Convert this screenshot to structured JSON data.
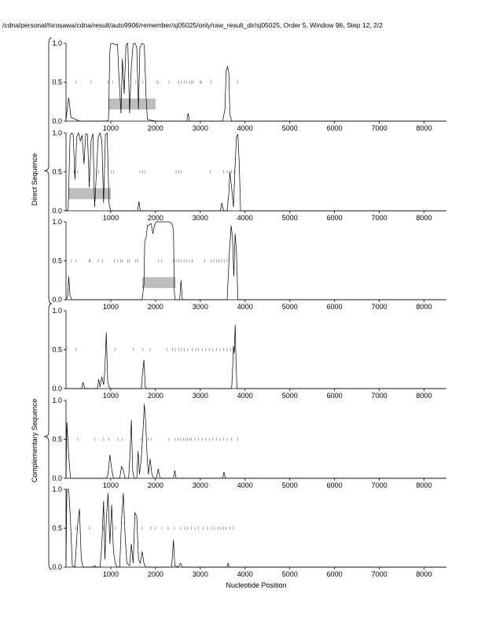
{
  "header": {
    "title": "/cdna/personal/hirosawa/cdna/result/auto9906/remember/sj05025/only/raw_result_dir/sj05025, Order 5, Window 96, Step 12, 2/2"
  },
  "side_labels": {
    "direct": "Direct Sequence",
    "complementary": "Complementary Sequence"
  },
  "chart_data": {
    "type": "line",
    "xlabel": "Nucleotide Position",
    "xlim": [
      0,
      8500
    ],
    "ylim": [
      0,
      1
    ],
    "x_ticks": [
      1000,
      2000,
      3000,
      4000,
      5000,
      6000,
      7000,
      8000
    ],
    "x_tick_labels": [
      "1000",
      "2000",
      "3000",
      "4000",
      "5000",
      "6000",
      "7000",
      "8000"
    ],
    "y_ticks": [
      0,
      0.5,
      1
    ],
    "y_tick_labels": [
      "0.0",
      "0.5",
      "1.0"
    ],
    "grid": false,
    "panels": [
      {
        "group": "direct",
        "region": [
          950,
          2000
        ],
        "marks": [
          220,
          560,
          940,
          1040,
          1300,
          1560,
          1720,
          2020,
          2060,
          2300,
          2520,
          2580,
          2640,
          2700,
          2760,
          2800,
          2840,
          3000,
          3020,
          3240,
          3840
        ],
        "points": [
          [
            0,
            0.02
          ],
          [
            60,
            0.3
          ],
          [
            110,
            0.05
          ],
          [
            300,
            0.0
          ],
          [
            900,
            0.0
          ],
          [
            950,
            0.02
          ],
          [
            980,
            0.9
          ],
          [
            1000,
            0.99
          ],
          [
            1050,
            1.0
          ],
          [
            1100,
            0.98
          ],
          [
            1150,
            0.99
          ],
          [
            1180,
            0.6
          ],
          [
            1230,
            0.1
          ],
          [
            1260,
            0.8
          ],
          [
            1300,
            0.35
          ],
          [
            1340,
            0.98
          ],
          [
            1380,
            1.0
          ],
          [
            1420,
            0.1
          ],
          [
            1460,
            0.7
          ],
          [
            1500,
            0.99
          ],
          [
            1540,
            1.0
          ],
          [
            1580,
            0.95
          ],
          [
            1620,
            0.15
          ],
          [
            1650,
            0.95
          ],
          [
            1700,
            1.0
          ],
          [
            1750,
            0.98
          ],
          [
            1790,
            0.3
          ],
          [
            1820,
            0.02
          ],
          [
            2000,
            0.0
          ],
          [
            2700,
            0.0
          ],
          [
            2730,
            0.1
          ],
          [
            2760,
            0.0
          ],
          [
            3500,
            0.0
          ],
          [
            3550,
            0.15
          ],
          [
            3580,
            0.65
          ],
          [
            3610,
            0.7
          ],
          [
            3640,
            0.6
          ],
          [
            3660,
            0.1
          ],
          [
            3700,
            0.0
          ],
          [
            8500,
            0.0
          ]
        ]
      },
      {
        "group": "direct",
        "region": [
          50,
          1000
        ],
        "marks": [
          180,
          260,
          680,
          730,
          1010,
          1060,
          1650,
          1710,
          1760,
          2460,
          2520,
          2580,
          3220,
          3520,
          3600,
          3660,
          3700,
          3760
        ],
        "points": [
          [
            0,
            0.0
          ],
          [
            50,
            0.02
          ],
          [
            90,
            0.95
          ],
          [
            120,
            1.0
          ],
          [
            160,
            0.98
          ],
          [
            200,
            0.4
          ],
          [
            240,
            0.95
          ],
          [
            280,
            1.0
          ],
          [
            320,
            0.9
          ],
          [
            360,
            0.97
          ],
          [
            400,
            0.6
          ],
          [
            440,
            0.99
          ],
          [
            480,
            0.98
          ],
          [
            520,
            0.3
          ],
          [
            560,
            0.9
          ],
          [
            600,
            0.99
          ],
          [
            640,
            0.05
          ],
          [
            680,
            0.5
          ],
          [
            720,
            0.95
          ],
          [
            760,
            1.0
          ],
          [
            800,
            0.9
          ],
          [
            840,
            0.1
          ],
          [
            880,
            0.98
          ],
          [
            920,
            1.0
          ],
          [
            960,
            0.1
          ],
          [
            1000,
            0.0
          ],
          [
            1600,
            0.0
          ],
          [
            1630,
            0.12
          ],
          [
            1660,
            0.0
          ],
          [
            3450,
            0.0
          ],
          [
            3480,
            0.1
          ],
          [
            3520,
            0.0
          ],
          [
            3600,
            0.0
          ],
          [
            3640,
            0.25
          ],
          [
            3660,
            0.5
          ],
          [
            3700,
            0.3
          ],
          [
            3740,
            0.05
          ],
          [
            3780,
            0.6
          ],
          [
            3810,
            0.95
          ],
          [
            3840,
            0.98
          ],
          [
            3870,
            0.6
          ],
          [
            3900,
            0.0
          ],
          [
            8500,
            0.0
          ]
        ]
      },
      {
        "group": "direct",
        "region": [
          1700,
          2450
        ],
        "marks": [
          120,
          220,
          520,
          540,
          720,
          820,
          1080,
          1160,
          1220,
          1260,
          1380,
          1420,
          1560,
          1600,
          2060,
          2140,
          2400,
          2460,
          2520,
          2580,
          2640,
          2700,
          2760,
          2820,
          3100,
          3240,
          3300,
          3360,
          3420,
          3480,
          3540,
          3600
        ],
        "points": [
          [
            0,
            0.0
          ],
          [
            40,
            0.05
          ],
          [
            60,
            0.3
          ],
          [
            90,
            0.05
          ],
          [
            130,
            0.0
          ],
          [
            1700,
            0.0
          ],
          [
            1740,
            0.2
          ],
          [
            1760,
            0.75
          ],
          [
            1790,
            0.8
          ],
          [
            1820,
            0.95
          ],
          [
            1860,
            0.96
          ],
          [
            1900,
            0.98
          ],
          [
            1940,
            0.85
          ],
          [
            1980,
            0.96
          ],
          [
            2020,
            1.0
          ],
          [
            2100,
            1.0
          ],
          [
            2200,
            1.0
          ],
          [
            2300,
            1.0
          ],
          [
            2360,
            0.98
          ],
          [
            2400,
            0.9
          ],
          [
            2420,
            0.1
          ],
          [
            2440,
            0.0
          ],
          [
            2540,
            0.0
          ],
          [
            2570,
            0.25
          ],
          [
            2600,
            0.0
          ],
          [
            3600,
            0.0
          ],
          [
            3650,
            0.6
          ],
          [
            3690,
            0.95
          ],
          [
            3720,
            0.8
          ],
          [
            3750,
            0.3
          ],
          [
            3780,
            0.85
          ],
          [
            3810,
            0.6
          ],
          [
            3840,
            0.0
          ],
          [
            8500,
            0.0
          ]
        ]
      },
      {
        "group": "complementary",
        "region": null,
        "marks": [
          220,
          1100,
          1500,
          1720,
          1880,
          2260,
          2380,
          2440,
          2520,
          2580,
          2640,
          2720,
          2820,
          2900,
          2960,
          3040,
          3120,
          3200,
          3280,
          3360,
          3440,
          3520,
          3600,
          3680,
          3740
        ],
        "points": [
          [
            0,
            0.0
          ],
          [
            350,
            0.0
          ],
          [
            380,
            0.08
          ],
          [
            420,
            0.0
          ],
          [
            700,
            0.0
          ],
          [
            730,
            0.12
          ],
          [
            760,
            0.02
          ],
          [
            800,
            0.15
          ],
          [
            840,
            0.05
          ],
          [
            870,
            0.25
          ],
          [
            900,
            0.72
          ],
          [
            930,
            0.1
          ],
          [
            960,
            0.02
          ],
          [
            1000,
            0.0
          ],
          [
            1680,
            0.0
          ],
          [
            1710,
            0.2
          ],
          [
            1740,
            0.37
          ],
          [
            1770,
            0.02
          ],
          [
            1800,
            0.0
          ],
          [
            3700,
            0.0
          ],
          [
            3720,
            0.2
          ],
          [
            3740,
            0.55
          ],
          [
            3760,
            0.45
          ],
          [
            3780,
            0.82
          ],
          [
            3800,
            0.3
          ],
          [
            3820,
            0.0
          ],
          [
            8500,
            0.0
          ]
        ]
      },
      {
        "group": "complementary",
        "region": null,
        "marks": [
          260,
          640,
          840,
          960,
          1160,
          1260,
          1680,
          1840,
          1900,
          2300,
          2440,
          2500,
          2560,
          2620,
          2680,
          2720,
          2760,
          2800,
          2880,
          2960,
          3040,
          3120,
          3200,
          3280,
          3360,
          3440,
          3520,
          3600,
          3700,
          3840
        ],
        "points": [
          [
            0,
            0.0
          ],
          [
            20,
            0.72
          ],
          [
            60,
            0.3
          ],
          [
            100,
            0.0
          ],
          [
            900,
            0.0
          ],
          [
            940,
            0.05
          ],
          [
            980,
            0.3
          ],
          [
            1020,
            0.12
          ],
          [
            1060,
            0.0
          ],
          [
            1200,
            0.0
          ],
          [
            1240,
            0.15
          ],
          [
            1280,
            0.1
          ],
          [
            1320,
            0.0
          ],
          [
            1400,
            0.0
          ],
          [
            1430,
            0.3
          ],
          [
            1460,
            0.75
          ],
          [
            1490,
            0.1
          ],
          [
            1520,
            0.0
          ],
          [
            1580,
            0.0
          ],
          [
            1610,
            0.35
          ],
          [
            1640,
            0.05
          ],
          [
            1680,
            0.25
          ],
          [
            1720,
            0.6
          ],
          [
            1750,
            0.95
          ],
          [
            1780,
            0.7
          ],
          [
            1810,
            0.3
          ],
          [
            1840,
            0.05
          ],
          [
            1880,
            0.25
          ],
          [
            1920,
            0.05
          ],
          [
            1960,
            0.0
          ],
          [
            2020,
            0.0
          ],
          [
            2060,
            0.12
          ],
          [
            2100,
            0.0
          ],
          [
            2400,
            0.0
          ],
          [
            2430,
            0.1
          ],
          [
            2460,
            0.0
          ],
          [
            3500,
            0.0
          ],
          [
            3530,
            0.08
          ],
          [
            3560,
            0.0
          ],
          [
            8500,
            0.0
          ]
        ]
      },
      {
        "group": "complementary",
        "region": null,
        "marks": [
          220,
          520,
          840,
          1100,
          1700,
          1900,
          2000,
          2140,
          2280,
          2420,
          2560,
          2660,
          2720,
          2800,
          2880,
          2960,
          3060,
          3160,
          3260,
          3320,
          3400,
          3460,
          3520,
          3580,
          3660,
          3740
        ],
        "points": [
          [
            0,
            0.1
          ],
          [
            20,
            1.0
          ],
          [
            60,
            1.0
          ],
          [
            100,
            0.6
          ],
          [
            140,
            0.02
          ],
          [
            200,
            0.0
          ],
          [
            260,
            0.55
          ],
          [
            300,
            0.75
          ],
          [
            340,
            0.1
          ],
          [
            380,
            0.0
          ],
          [
            600,
            0.0
          ],
          [
            640,
            0.02
          ],
          [
            680,
            0.0
          ],
          [
            760,
            0.0
          ],
          [
            800,
            0.3
          ],
          [
            840,
            0.85
          ],
          [
            870,
            0.1
          ],
          [
            900,
            0.6
          ],
          [
            940,
            0.95
          ],
          [
            980,
            0.3
          ],
          [
            1020,
            0.8
          ],
          [
            1060,
            0.2
          ],
          [
            1100,
            0.05
          ],
          [
            1140,
            0.0
          ],
          [
            1200,
            0.0
          ],
          [
            1240,
            0.6
          ],
          [
            1280,
            0.95
          ],
          [
            1320,
            0.4
          ],
          [
            1360,
            0.05
          ],
          [
            1420,
            0.02
          ],
          [
            1460,
            0.3
          ],
          [
            1500,
            0.05
          ],
          [
            1540,
            0.7
          ],
          [
            1580,
            0.65
          ],
          [
            1620,
            0.1
          ],
          [
            1660,
            0.05
          ],
          [
            1700,
            0.2
          ],
          [
            1740,
            0.05
          ],
          [
            1780,
            0.0
          ],
          [
            2360,
            0.0
          ],
          [
            2400,
            0.35
          ],
          [
            2430,
            0.02
          ],
          [
            2500,
            0.0
          ],
          [
            2560,
            0.05
          ],
          [
            2600,
            0.0
          ],
          [
            3600,
            0.0
          ],
          [
            3620,
            0.05
          ],
          [
            3650,
            0.0
          ],
          [
            8500,
            0.0
          ]
        ]
      }
    ]
  }
}
